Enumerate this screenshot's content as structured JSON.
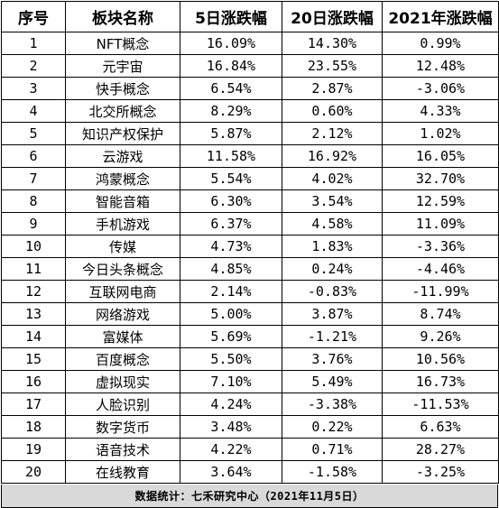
{
  "table": {
    "headers": {
      "rank": "序号",
      "name": "板块名称",
      "change_5d": "5日涨跌幅",
      "change_20d": "20日涨跌幅",
      "change_2021": "2021年涨跌幅"
    },
    "rows": [
      {
        "rank": "1",
        "name": "NFT概念",
        "change_5d": "16.09%",
        "change_20d": "14.30%",
        "change_2021": "0.99%"
      },
      {
        "rank": "2",
        "name": "元宇宙",
        "change_5d": "16.84%",
        "change_20d": "23.55%",
        "change_2021": "12.48%"
      },
      {
        "rank": "3",
        "name": "快手概念",
        "change_5d": "6.54%",
        "change_20d": "2.87%",
        "change_2021": "-3.06%"
      },
      {
        "rank": "4",
        "name": "北交所概念",
        "change_5d": "8.29%",
        "change_20d": "0.60%",
        "change_2021": "4.33%"
      },
      {
        "rank": "5",
        "name": "知识产权保护",
        "change_5d": "5.87%",
        "change_20d": "2.12%",
        "change_2021": "1.02%"
      },
      {
        "rank": "6",
        "name": "云游戏",
        "change_5d": "11.58%",
        "change_20d": "16.92%",
        "change_2021": "16.05%"
      },
      {
        "rank": "7",
        "name": "鸿蒙概念",
        "change_5d": "5.54%",
        "change_20d": "4.02%",
        "change_2021": "32.70%"
      },
      {
        "rank": "8",
        "name": "智能音箱",
        "change_5d": "6.30%",
        "change_20d": "3.54%",
        "change_2021": "12.59%"
      },
      {
        "rank": "9",
        "name": "手机游戏",
        "change_5d": "6.37%",
        "change_20d": "4.58%",
        "change_2021": "11.09%"
      },
      {
        "rank": "10",
        "name": "传媒",
        "change_5d": "4.73%",
        "change_20d": "1.83%",
        "change_2021": "-3.36%"
      },
      {
        "rank": "11",
        "name": "今日头条概念",
        "change_5d": "4.85%",
        "change_20d": "0.24%",
        "change_2021": "-4.46%"
      },
      {
        "rank": "12",
        "name": "互联网电商",
        "change_5d": "2.14%",
        "change_20d": "-0.83%",
        "change_2021": "-11.99%"
      },
      {
        "rank": "13",
        "name": "网络游戏",
        "change_5d": "5.00%",
        "change_20d": "3.87%",
        "change_2021": "8.74%"
      },
      {
        "rank": "14",
        "name": "富媒体",
        "change_5d": "5.69%",
        "change_20d": "-1.21%",
        "change_2021": "9.26%"
      },
      {
        "rank": "15",
        "name": "百度概念",
        "change_5d": "5.50%",
        "change_20d": "3.76%",
        "change_2021": "10.56%"
      },
      {
        "rank": "16",
        "name": "虚拟现实",
        "change_5d": "7.10%",
        "change_20d": "5.49%",
        "change_2021": "16.73%"
      },
      {
        "rank": "17",
        "name": "人脸识别",
        "change_5d": "4.24%",
        "change_20d": "-3.38%",
        "change_2021": "-11.53%"
      },
      {
        "rank": "18",
        "name": "数字货币",
        "change_5d": "3.48%",
        "change_20d": "0.22%",
        "change_2021": "6.63%"
      },
      {
        "rank": "19",
        "name": "语音技术",
        "change_5d": "4.22%",
        "change_20d": "0.71%",
        "change_2021": "28.27%"
      },
      {
        "rank": "20",
        "name": "在线教育",
        "change_5d": "3.64%",
        "change_20d": "-1.58%",
        "change_2021": "-3.25%"
      }
    ]
  },
  "footer": {
    "text": "数据统计：七禾研究中心（2021年11月5日）"
  }
}
